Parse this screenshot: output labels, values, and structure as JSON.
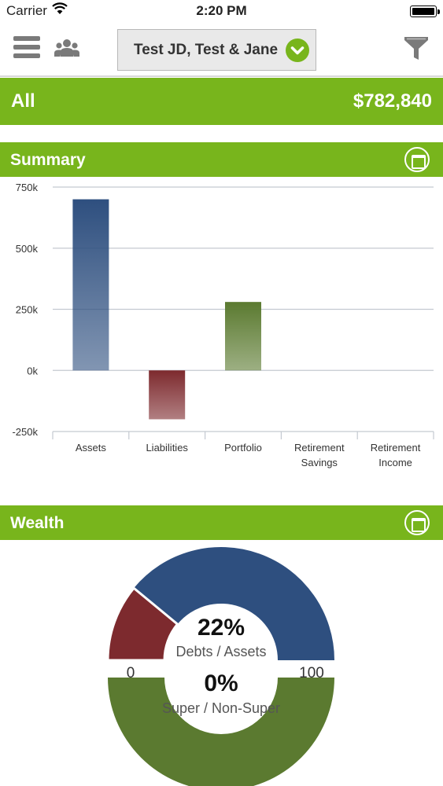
{
  "status_bar": {
    "carrier": "Carrier",
    "time": "2:20 PM"
  },
  "header": {
    "client_selector_label": "Test JD, Test & Jane",
    "icons": [
      "menu-icon",
      "people-icon",
      "chevron-down-icon",
      "filter-icon"
    ]
  },
  "all_bar": {
    "label": "All",
    "total": "$782,840"
  },
  "summary": {
    "title": "Summary",
    "chart_data": {
      "type": "bar",
      "categories": [
        "Assets",
        "Liabilities",
        "Portfolio",
        "Retirement Savings",
        "Retirement Income"
      ],
      "category_lines": [
        [
          "Assets"
        ],
        [
          "Liabilities"
        ],
        [
          "Portfolio"
        ],
        [
          "Retirement",
          "Savings"
        ],
        [
          "Retirement",
          "Income"
        ]
      ],
      "values": [
        700000,
        -200000,
        280000,
        0,
        0
      ],
      "ylim": [
        -250000,
        750000
      ],
      "yticks": [
        750000,
        500000,
        250000,
        0,
        -250000
      ],
      "ytick_labels": [
        "750k",
        "500k",
        "250k",
        "0k",
        "-250k"
      ],
      "grid": true,
      "colors": [
        "#2e4f7f",
        "#7d2a2e",
        "#5b7a30",
        "#5b7a30",
        "#5b7a30"
      ]
    }
  },
  "wealth": {
    "title": "Wealth",
    "chart_data": {
      "type": "pie",
      "gauges": [
        {
          "value_label": "22%",
          "caption": "Debts / Assets",
          "value": 22,
          "range": [
            0,
            100
          ],
          "fill_color": "#7d2a2e",
          "rest_color": "#2e4f7f"
        },
        {
          "value_label": "0%",
          "caption": "Super / Non-Super",
          "value": 0,
          "range": [
            0,
            100
          ],
          "fill_color": "#7d2a2e",
          "rest_color": "#5b7a30"
        }
      ],
      "range_labels": [
        "0",
        "100"
      ]
    }
  },
  "colors": {
    "brand_green": "#78b51c",
    "assets_blue": "#2e4f7f",
    "liabilities_red": "#7d2a2e",
    "portfolio_green": "#5b7a30"
  }
}
